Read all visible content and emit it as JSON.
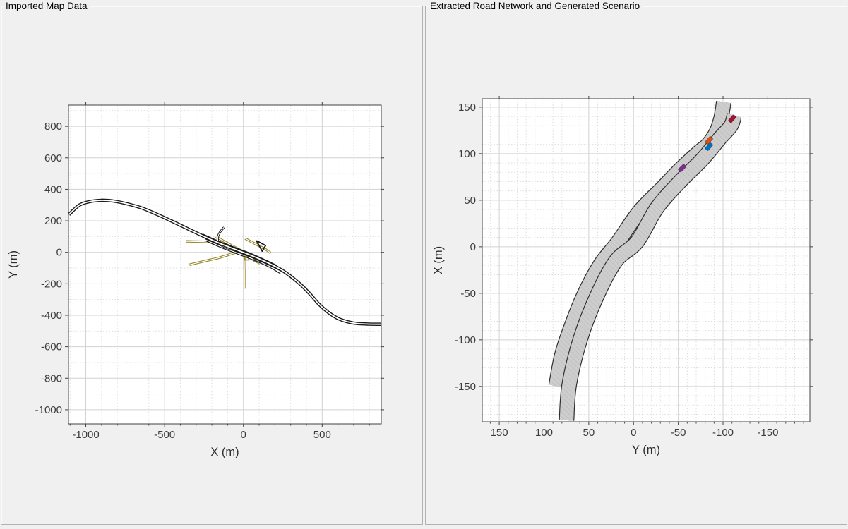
{
  "figure": {
    "background": "#f0f0f0",
    "panel_border": "#b2b2b2"
  },
  "panels": {
    "left": {
      "title": "Imported Map Data"
    },
    "right": {
      "title": "Extracted Road Network and Generated Scenario"
    }
  },
  "chart_data": [
    {
      "id": "imported-map",
      "type": "line",
      "title": "Imported Map Data",
      "xlabel": "X (m)",
      "ylabel": "Y (m)",
      "xlim": [
        -1110,
        875
      ],
      "ylim": [
        -1090,
        935
      ],
      "x_dir": "normal",
      "y_dir": "normal",
      "xticks": [
        -1000,
        -500,
        0,
        500
      ],
      "yticks": [
        -1000,
        -800,
        -600,
        -400,
        -200,
        0,
        200,
        400,
        600,
        800
      ],
      "minor_step": 100,
      "grid": true,
      "minor_grid": true,
      "colors": {
        "road_black": "#1a1a1a",
        "road_olive": "#98892f",
        "route_blue": "#0072BD",
        "casing_inner": "#ffffff"
      },
      "series": [
        {
          "name": "olive-road-west-horizontal",
          "style": "casing",
          "color": "#98892f",
          "width": 3.4,
          "inner": "#ffffff",
          "inner_width": 1.2,
          "smooth": true,
          "points": [
            [
              -365,
              70
            ],
            [
              -250,
              67
            ],
            [
              -141,
              61
            ]
          ]
        },
        {
          "name": "olive-road-upper-left-parallel",
          "style": "casing",
          "color": "#98892f",
          "width": 3.4,
          "inner": "#ffffff",
          "inner_width": 1.2,
          "smooth": true,
          "points": [
            [
              -177,
              101
            ],
            [
              -90,
              52
            ],
            [
              -7,
              7
            ]
          ]
        },
        {
          "name": "olive-road-upper-right-parallel",
          "style": "casing",
          "color": "#98892f",
          "width": 3.4,
          "inner": "#ffffff",
          "inner_width": 1.2,
          "smooth": true,
          "points": [
            [
              11,
              88
            ],
            [
              80,
              51
            ],
            [
              145,
              16
            ],
            [
              172,
              -4
            ]
          ]
        },
        {
          "name": "olive-road-southwest-branch",
          "style": "casing",
          "color": "#98892f",
          "width": 3.4,
          "inner": "#ffffff",
          "inner_width": 1.2,
          "smooth": true,
          "points": [
            [
              -51,
              -2
            ],
            [
              -150,
              -33
            ],
            [
              -230,
              -52
            ],
            [
              -342,
              -79
            ]
          ]
        },
        {
          "name": "olive-road-south-vertical",
          "style": "casing",
          "color": "#98892f",
          "width": 3.4,
          "inner": "#ffffff",
          "inner_width": 1.2,
          "smooth": false,
          "points": [
            [
              11,
              -7
            ],
            [
              9,
              -120
            ],
            [
              9,
              -231
            ]
          ]
        },
        {
          "name": "olive-road-southeast-segment",
          "style": "casing",
          "color": "#98892f",
          "width": 3.4,
          "inner": "#ffffff",
          "inner_width": 1.2,
          "smooth": false,
          "points": [
            [
              60,
              -47
            ],
            [
              105,
              -70
            ]
          ]
        },
        {
          "name": "olive-loop-square",
          "style": "plain",
          "color": "#98892f",
          "width": 1.6,
          "smooth": false,
          "points": [
            [
              9,
              -25
            ],
            [
              34,
              -27
            ],
            [
              33,
              -49
            ],
            [
              9,
              -49
            ],
            [
              9,
              -25
            ]
          ]
        },
        {
          "name": "blue-route-segment",
          "style": "plain",
          "color": "#0072BD",
          "width": 2.2,
          "smooth": false,
          "points": [
            [
              98,
              -57
            ],
            [
              114,
              -67
            ]
          ]
        },
        {
          "name": "highway-parallel-lane-upper",
          "style": "plain",
          "color": "#1a1a1a",
          "width": 1.2,
          "smooth": true,
          "points": [
            [
              -255,
              115
            ],
            [
              -155,
              71
            ],
            [
              -55,
              32
            ],
            [
              45,
              -6
            ],
            [
              145,
              -50
            ],
            [
              215,
              -84
            ]
          ]
        },
        {
          "name": "highway-parallel-lane-lower-1",
          "style": "plain",
          "color": "#1a1a1a",
          "width": 1.2,
          "smooth": true,
          "points": [
            [
              -245,
              87
            ],
            [
              -145,
              43
            ],
            [
              -45,
              4
            ],
            [
              55,
              -34
            ],
            [
              155,
              -78
            ],
            [
              245,
              -122
            ]
          ]
        },
        {
          "name": "highway-parallel-lane-lower-2",
          "style": "plain",
          "color": "#1a1a1a",
          "width": 1.2,
          "smooth": true,
          "points": [
            [
              -240,
              73
            ],
            [
              -140,
              29
            ],
            [
              -40,
              -10
            ],
            [
              60,
              -48
            ],
            [
              160,
              -92
            ],
            [
              235,
              -136
            ]
          ]
        },
        {
          "name": "ramp-north-curve",
          "style": "casing",
          "color": "#1a1a1a",
          "width": 3.0,
          "inner": "#ffffff",
          "inner_width": 1.1,
          "smooth": true,
          "points": [
            [
              -123,
              159
            ],
            [
              -152,
              122
            ],
            [
              -163,
              85
            ],
            [
              -150,
              52
            ],
            [
              -110,
              30
            ],
            [
              -60,
              14
            ],
            [
              -10,
              3
            ]
          ]
        },
        {
          "name": "ramp-triangle-loop",
          "style": "plain",
          "color": "#1a1a1a",
          "width": 1.8,
          "smooth": false,
          "points": [
            [
              83,
              74
            ],
            [
              141,
              43
            ],
            [
              119,
              7
            ],
            [
              83,
              74
            ]
          ]
        },
        {
          "name": "main-highway",
          "style": "casing",
          "color": "#1a1a1a",
          "width": 4.6,
          "inner": "#ffffff",
          "inner_width": 1.8,
          "smooth": true,
          "points": [
            [
              -1107,
              240
            ],
            [
              -1040,
              300
            ],
            [
              -970,
              323
            ],
            [
              -900,
              330
            ],
            [
              -830,
              326
            ],
            [
              -760,
              313
            ],
            [
              -650,
              283
            ],
            [
              -550,
              242
            ],
            [
              -450,
              196
            ],
            [
              -350,
              148
            ],
            [
              -250,
              101
            ],
            [
              -150,
              57
            ],
            [
              -50,
              18
            ],
            [
              50,
              -20
            ],
            [
              150,
              -64
            ],
            [
              250,
              -117
            ],
            [
              350,
              -193
            ],
            [
              420,
              -262
            ],
            [
              480,
              -330
            ],
            [
              540,
              -382
            ],
            [
              600,
              -420
            ],
            [
              660,
              -441
            ],
            [
              720,
              -452
            ],
            [
              800,
              -456
            ],
            [
              875,
              -457
            ]
          ]
        }
      ]
    },
    {
      "id": "scenario",
      "type": "line",
      "title": "Extracted Road Network and Generated Scenario",
      "xlabel": "Y (m)",
      "ylabel": "X (m)",
      "xlim": [
        -197,
        169
      ],
      "ylim": [
        -188,
        159
      ],
      "x_dir": "reversed",
      "y_dir": "normal",
      "xticks": [
        150,
        100,
        50,
        0,
        -50,
        -100,
        -150
      ],
      "yticks": [
        -150,
        -100,
        -50,
        0,
        50,
        100,
        150
      ],
      "minor_step": 10,
      "grid": true,
      "minor_grid": true,
      "road_style": {
        "fill": "#cdcdcd",
        "hatch": "#bcbcbc",
        "edge": "#2f2f2f",
        "width_m": 15
      },
      "roads": [
        {
          "name": "left-carriageway",
          "width_m": 15,
          "centerline_yx": [
            [
              86.6,
              -149.4
            ],
            [
              80.3,
              -117
            ],
            [
              70.9,
              -89.1
            ],
            [
              55.9,
              -52.8
            ],
            [
              37,
              -18.9
            ],
            [
              17.3,
              5.3
            ],
            [
              -6.3,
              37.7
            ],
            [
              -32.3,
              63.4
            ],
            [
              -52,
              83
            ],
            [
              -73.2,
              101.9
            ],
            [
              -82.7,
              109.4
            ],
            [
              -92.1,
              122.3
            ],
            [
              -97.6,
              137.4
            ],
            [
              -100.8,
              155.5
            ]
          ]
        },
        {
          "name": "right-carriageway",
          "width_m": 15,
          "centerline_yx": [
            [
              74.8,
              -186.4
            ],
            [
              71.7,
              -147.2
            ],
            [
              59.1,
              -98.1
            ],
            [
              40.9,
              -52.8
            ],
            [
              19.7,
              -15.1
            ],
            [
              -3.9,
              5.3
            ],
            [
              -26,
              41.5
            ],
            [
              -51.2,
              69.4
            ],
            [
              -77.2,
              94.3
            ],
            [
              -96.9,
              117
            ],
            [
              -108.7,
              129.8
            ],
            [
              -112.6,
              141.1
            ]
          ]
        }
      ],
      "vehicle_length_m": 9,
      "vehicle_width_m": 4.3,
      "vehicles": [
        {
          "name": "vehicle-blue",
          "color": "#0072BD",
          "y_m": -84.3,
          "x_m": 107.5,
          "yaw_deg": -43
        },
        {
          "name": "vehicle-orange",
          "color": "#D95319",
          "y_m": -84.3,
          "x_m": 114.3,
          "yaw_deg": -44
        },
        {
          "name": "vehicle-purple",
          "color": "#7E2F8E",
          "y_m": -54.3,
          "x_m": 84.5,
          "yaw_deg": -46
        },
        {
          "name": "vehicle-dark-red",
          "color": "#A2142F",
          "y_m": -110.2,
          "x_m": 137.4,
          "yaw_deg": -42
        }
      ],
      "axes_style": {
        "box_color": "#424242",
        "tick_label_color": "#3c3c3c",
        "label_color": "#2e2e2e",
        "grid_major": "#d2d2d2",
        "grid_minor": "#dcdcdc",
        "plot_bg": "#ffffff"
      }
    }
  ]
}
